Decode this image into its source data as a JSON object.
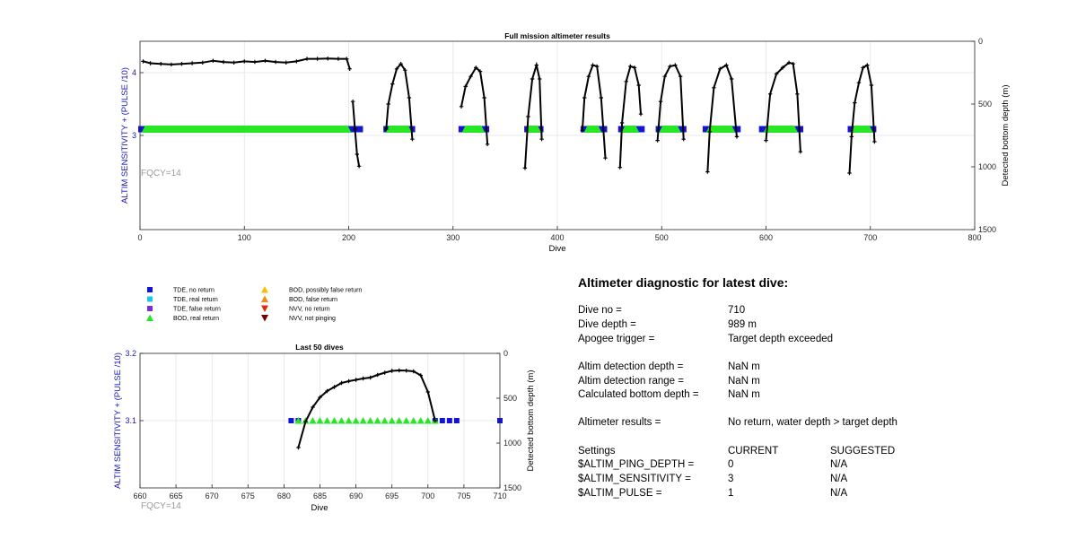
{
  "chart_data": [
    {
      "type": "scatter",
      "title": "Full mission altimeter results",
      "xlabel": "Dive",
      "ylabel_left": "ALTIM SENSITIVITY + (PULSE /10)",
      "ylabel_right": "Detected bottom depth (m)",
      "xlim": [
        0,
        800
      ],
      "ylim_left": [
        1.5,
        4.5
      ],
      "ylim_right": [
        1500,
        0
      ],
      "xticks": [
        "0",
        "100",
        "200",
        "300",
        "400",
        "500",
        "600",
        "700",
        "800"
      ],
      "yticks_left": [
        "3",
        "4"
      ],
      "yticks_right": [
        "0",
        "500",
        "1000",
        "1500"
      ],
      "annotation": "FQCY=14",
      "grid": true,
      "tde_no_return_ranges": [
        [
          0,
          4
        ],
        [
          200,
          212
        ],
        [
          235,
          262
        ],
        [
          307,
          333
        ],
        [
          370,
          385
        ],
        [
          424,
          446
        ],
        [
          460,
          482
        ],
        [
          496,
          522
        ],
        [
          541,
          574
        ],
        [
          595,
          634
        ],
        [
          680,
          704
        ]
      ],
      "bod_real_return_ranges": [
        [
          4,
          200
        ],
        [
          238,
          258
        ],
        [
          311,
          328
        ],
        [
          372,
          382
        ],
        [
          428,
          440
        ],
        [
          464,
          476
        ],
        [
          500,
          516
        ],
        [
          545,
          568
        ],
        [
          600,
          628
        ],
        [
          684,
          700
        ]
      ],
      "bottom_depth_series": [
        {
          "x": [
            3,
            10,
            20,
            30,
            40,
            50,
            60,
            70,
            80,
            90,
            100,
            110,
            120,
            130,
            140,
            150,
            160,
            170,
            180,
            190,
            198,
            201
          ],
          "y": [
            160,
            175,
            180,
            185,
            180,
            175,
            170,
            155,
            165,
            170,
            160,
            165,
            155,
            165,
            170,
            160,
            140,
            140,
            138,
            140,
            140,
            220
          ]
        },
        {
          "x": [
            204,
            206,
            208,
            210
          ],
          "y": [
            480,
            700,
            900,
            995
          ]
        },
        {
          "x": [
            236,
            238,
            242,
            246,
            250,
            254,
            258,
            261
          ],
          "y": [
            700,
            500,
            340,
            220,
            180,
            230,
            450,
            780
          ]
        },
        {
          "x": [
            308,
            312,
            317,
            322,
            326,
            330,
            333
          ],
          "y": [
            520,
            360,
            280,
            210,
            240,
            450,
            820
          ]
        },
        {
          "x": [
            369,
            372,
            376,
            380,
            383,
            385
          ],
          "y": [
            1010,
            600,
            300,
            190,
            300,
            780
          ]
        },
        {
          "x": [
            424,
            426,
            430,
            434,
            438,
            442,
            446
          ],
          "y": [
            710,
            450,
            280,
            190,
            200,
            450,
            930
          ]
        },
        {
          "x": [
            460,
            462,
            466,
            470,
            474,
            478,
            480
          ],
          "y": [
            1005,
            650,
            320,
            200,
            210,
            350,
            580
          ]
        },
        {
          "x": [
            496,
            499,
            503,
            508,
            513,
            518,
            521
          ],
          "y": [
            790,
            480,
            280,
            200,
            190,
            280,
            780
          ]
        },
        {
          "x": [
            544,
            546,
            550,
            556,
            562,
            567,
            572
          ],
          "y": [
            1040,
            720,
            370,
            220,
            190,
            300,
            760
          ]
        },
        {
          "x": [
            600,
            604,
            610,
            616,
            622,
            626,
            630,
            633
          ],
          "y": [
            790,
            420,
            260,
            210,
            170,
            180,
            420,
            880
          ]
        },
        {
          "x": [
            680,
            682,
            685,
            689,
            693,
            697,
            701,
            704
          ],
          "y": [
            1050,
            760,
            490,
            330,
            210,
            190,
            350,
            800
          ]
        }
      ]
    },
    {
      "type": "scatter",
      "title": "Last 50 dives",
      "xlabel": "Dive",
      "ylabel_left": "ALTIM SENSITIVITY + (PULSE /10)",
      "ylabel_right": "Detected bottom depth (m)",
      "xlim": [
        660,
        710
      ],
      "ylim_left": [
        3.0,
        3.2
      ],
      "ylim_right": [
        1500,
        0
      ],
      "xticks": [
        "660",
        "665",
        "670",
        "675",
        "680",
        "685",
        "690",
        "695",
        "700",
        "705",
        "710"
      ],
      "yticks_left": [
        "3.1",
        "3.2"
      ],
      "yticks_right": [
        "0",
        "500",
        "1000",
        "1500"
      ],
      "annotation": "FQCY=14",
      "grid": true,
      "tde_no_return_x": [
        681,
        682,
        701,
        702,
        703,
        704,
        710
      ],
      "bod_real_return_x": [
        682,
        683,
        684,
        685,
        686,
        687,
        688,
        689,
        690,
        691,
        692,
        693,
        694,
        695,
        696,
        697,
        698,
        699,
        700,
        701
      ],
      "bottom_depth": {
        "x": [
          682,
          683,
          684,
          685,
          686,
          687,
          688,
          689,
          690,
          691,
          692,
          693,
          694,
          695,
          696,
          697,
          698,
          699,
          700,
          701
        ],
        "y": [
          1050,
          760,
          600,
          490,
          420,
          375,
          330,
          310,
          295,
          280,
          270,
          240,
          215,
          195,
          190,
          192,
          200,
          245,
          430,
          750
        ]
      }
    }
  ],
  "legend": {
    "items": [
      {
        "label": "TDE, no return",
        "marker": "square",
        "color": "#1414d2"
      },
      {
        "label": "TDE, real return",
        "marker": "square",
        "color": "#19c8e6"
      },
      {
        "label": "TDE, false return",
        "marker": "square",
        "color": "#7e2fcf"
      },
      {
        "label": "BOD, real return",
        "marker": "triangle-up",
        "color": "#26e626"
      },
      {
        "label": "BOD, possibly false return",
        "marker": "triangle-up",
        "color": "#f2c200"
      },
      {
        "label": "BOD, false return",
        "marker": "triangle-up",
        "color": "#f08a14"
      },
      {
        "label": "NVV, no return",
        "marker": "triangle-down",
        "color": "#e02a10"
      },
      {
        "label": "NVV, not pinging",
        "marker": "triangle-down",
        "color": "#7a0000"
      }
    ]
  },
  "diagnostic": {
    "title": "Altimeter diagnostic for latest dive:",
    "dive_no_label": "Dive no =",
    "dive_no_value": "710",
    "dive_depth_label": "Dive depth =",
    "dive_depth_value": "989 m",
    "apogee_label": "Apogee trigger =",
    "apogee_value": "Target depth exceeded",
    "det_depth_label": "Altim detection depth =",
    "det_depth_value": "NaN m",
    "det_range_label": "Altim detection range =",
    "det_range_value": "NaN m",
    "calc_bottom_label": "Calculated bottom depth =",
    "calc_bottom_value": "NaN m",
    "results_label": "Altimeter results =",
    "results_value": "No return, water depth > target depth",
    "settings_label": "Settings",
    "current_label": "CURRENT",
    "suggested_label": "SUGGESTED",
    "ping_depth_label": "$ALTIM_PING_DEPTH =",
    "ping_depth_current": "0",
    "ping_depth_suggested": "N/A",
    "sensitivity_label": "$ALTIM_SENSITIVITY =",
    "sensitivity_current": "3",
    "sensitivity_suggested": "N/A",
    "pulse_label": "$ALTIM_PULSE =",
    "pulse_current": "1",
    "pulse_suggested": "N/A"
  },
  "colors": {
    "tde_no_return": "#1414d2",
    "bod_real_return": "#26e626",
    "left_axis_label": "#1a1ab4",
    "annotation": "#9a9a9a",
    "grid": "#e3e3e3"
  }
}
